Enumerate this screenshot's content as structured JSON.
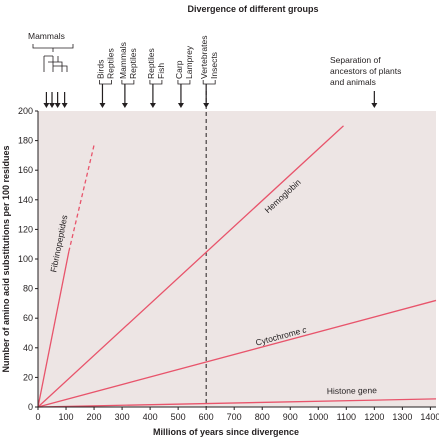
{
  "chart_data": {
    "type": "line",
    "title": "Divergence of different groups",
    "xlabel": "Millions of years since divergence",
    "ylabel": "Number of amino acid substitutions per 100 residues",
    "xlim": [
      0,
      1420
    ],
    "ylim": [
      0,
      200
    ],
    "xticks": [
      "0",
      "100",
      "200",
      "300",
      "400",
      "500",
      "600",
      "700",
      "800",
      "900",
      "1000",
      "1100",
      "1200",
      "1300",
      "1400"
    ],
    "yticks": [
      "0",
      "20",
      "40",
      "60",
      "80",
      "100",
      "120",
      "140",
      "160",
      "180",
      "200"
    ],
    "grid": false,
    "series": [
      {
        "name": "Fibrinopeptides",
        "points": [
          [
            0,
            0
          ],
          [
            110,
            105
          ]
        ],
        "dashed_extension": [
          [
            110,
            105
          ],
          [
            200,
            177
          ]
        ],
        "label_at": [
          85,
          110
        ],
        "color": "#e8546b"
      },
      {
        "name": "Hemoglobin",
        "points": [
          [
            0,
            0
          ],
          [
            1090,
            190
          ]
        ],
        "label_at": [
          880,
          141
        ],
        "color": "#e8546b"
      },
      {
        "name": "Cytochrome c",
        "points": [
          [
            0,
            0
          ],
          [
            1420,
            72
          ]
        ],
        "label_at": [
          870,
          46
        ],
        "color": "#e8546b"
      },
      {
        "name": "Histone gene",
        "points": [
          [
            0,
            0
          ],
          [
            1420,
            5.5
          ]
        ],
        "label_at": [
          1120,
          9
        ],
        "color": "#e8546b"
      }
    ],
    "reference_line": {
      "x": 600,
      "style": "dashed",
      "color": "#231f20"
    },
    "divergence_markers": [
      {
        "label": "Mammals",
        "x": [
          30,
          50,
          70,
          95
        ]
      },
      {
        "labels": [
          "Birds",
          "Reptiles"
        ],
        "x": 230
      },
      {
        "labels": [
          "Mammals",
          "Reptiles"
        ],
        "x": 310
      },
      {
        "labels": [
          "Reptiles",
          "Fish"
        ],
        "x": 410
      },
      {
        "labels": [
          "Carp",
          "Lamprey"
        ],
        "x": 510
      },
      {
        "labels": [
          "Vertebrates",
          "Insects"
        ],
        "x": 600
      },
      {
        "labels": [
          "Separation of",
          "ancestors of plants",
          "and animals"
        ],
        "x": 1200
      }
    ],
    "colors": {
      "plot_bg": "#ede5e4",
      "line": "#e8546b",
      "text": "#231f20"
    }
  }
}
